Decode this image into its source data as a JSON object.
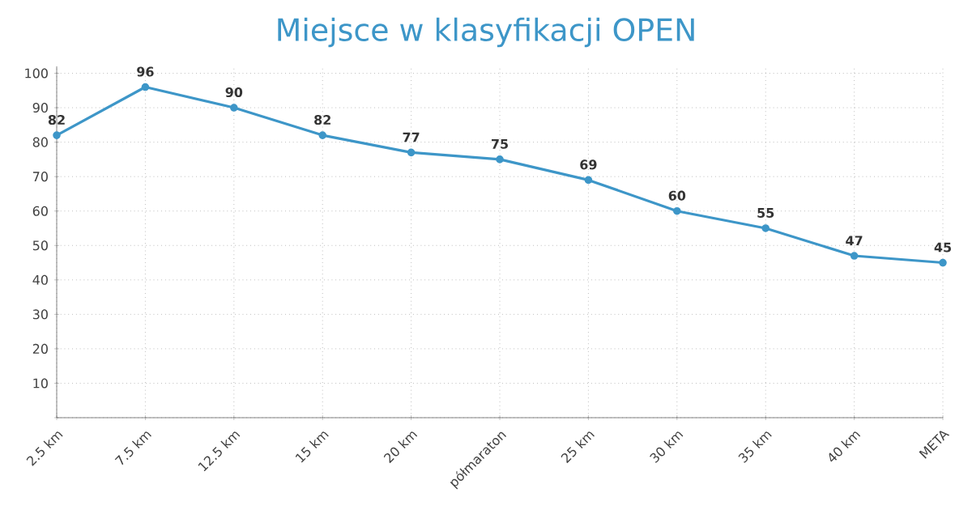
{
  "chart_data": {
    "type": "line",
    "title": "Miejsce w klasyfikacji OPEN",
    "categories": [
      "2.5 km",
      "7.5 km",
      "12.5 km",
      "15 km",
      "20 km",
      "półmaraton",
      "25 km",
      "30 km",
      "35 km",
      "40 km",
      "META"
    ],
    "values": [
      82,
      96,
      90,
      82,
      77,
      75,
      69,
      60,
      55,
      47,
      45
    ],
    "color": "#3d96c8",
    "ylim": [
      0,
      102
    ],
    "yticks": [
      {
        "value": 0,
        "label": null
      },
      10,
      20,
      30,
      40,
      50,
      60,
      70,
      80,
      90,
      100
    ],
    "grid": true,
    "marker": "circle",
    "line_style": "solid",
    "data_labels": true
  }
}
